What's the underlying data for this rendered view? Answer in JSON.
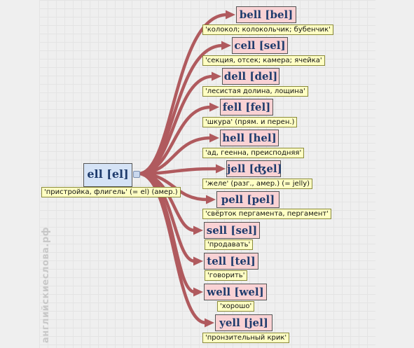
{
  "main": {
    "word": "ell [el]",
    "translation": "'пристройка, флигель' (= el) (амер.)"
  },
  "targets": [
    {
      "word": "bell [bel]",
      "translation": "'колокол; колокольчик; бубенчик'"
    },
    {
      "word": "cell [sel]",
      "translation": "'секция, отсек; камера; ячейка'"
    },
    {
      "word": "dell [del]",
      "translation": "'лесистая долина, лощина'"
    },
    {
      "word": "fell [fel]",
      "translation": "'шкура' (прям. и перен.)"
    },
    {
      "word": "hell [hel]",
      "translation": "'ад, геенна, преисподняя'"
    },
    {
      "word": "jell [ʤel]",
      "translation": "'желе' (разг., амер.) (= jelly)"
    },
    {
      "word": "pell [pel]",
      "translation": "'свёрток пергамента, пергамент'"
    },
    {
      "word": "sell [sel]",
      "translation": "'продавать'"
    },
    {
      "word": "tell [tel]",
      "translation": "'говорить'"
    },
    {
      "word": "well [wel]",
      "translation": "'хорошо'"
    },
    {
      "word": "yell [jel]",
      "translation": "'пронзительный крик'"
    }
  ],
  "watermark": "английскиеслова.рф",
  "colors": {
    "arrow": "#b05a5e",
    "target_fill": "#f9d2d4",
    "main_fill": "#d5e3f6",
    "translation_fill": "#ffffc4",
    "word_text": "#1f3c6d"
  }
}
